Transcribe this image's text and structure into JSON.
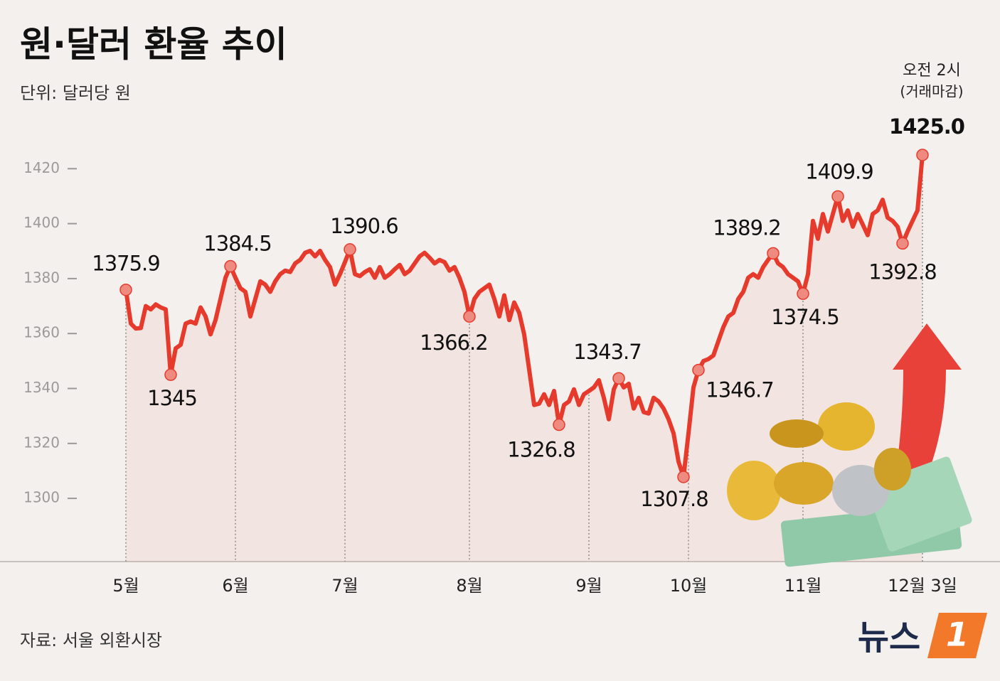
{
  "chart_data": {
    "type": "line",
    "title": "원·달러 환율 추이",
    "subtitle": "단위: 달러당 원",
    "source": "자료: 서울 외환시장",
    "annotation": [
      "오전 2시",
      "(거래마감)"
    ],
    "logo_text": "뉴스",
    "logo_number": "1",
    "color": "#e63b2c",
    "ylim": [
      1277,
      1440
    ],
    "yticks": [
      1300,
      1320,
      1340,
      1360,
      1380,
      1400,
      1420
    ],
    "categories": [
      "5월",
      null,
      null,
      null,
      null,
      null,
      null,
      null,
      null,
      null,
      null,
      null,
      null,
      null,
      null,
      null,
      null,
      null,
      null,
      null,
      null,
      null,
      "6월",
      null,
      null,
      null,
      null,
      null,
      null,
      null,
      null,
      null,
      null,
      null,
      null,
      null,
      null,
      null,
      null,
      null,
      null,
      null,
      null,
      null,
      "7월",
      null,
      null,
      null,
      null,
      null,
      null,
      null,
      null,
      null,
      null,
      null,
      null,
      null,
      null,
      null,
      null,
      null,
      null,
      null,
      null,
      null,
      null,
      null,
      null,
      "8월",
      null,
      null,
      null,
      null,
      null,
      null,
      null,
      null,
      null,
      null,
      null,
      null,
      null,
      null,
      null,
      null,
      null,
      null,
      null,
      null,
      null,
      null,
      null,
      "9월",
      null,
      null,
      null,
      null,
      null,
      null,
      null,
      null,
      null,
      null,
      null,
      null,
      null,
      null,
      null,
      null,
      null,
      null,
      null,
      "10월",
      null,
      null,
      null,
      null,
      null,
      null,
      null,
      null,
      null,
      null,
      null,
      null,
      null,
      null,
      null,
      null,
      null,
      null,
      null,
      null,
      null,
      null,
      "11월",
      null,
      null,
      null,
      null,
      null,
      null,
      null,
      null,
      null,
      null,
      null,
      null,
      null,
      null,
      null,
      null,
      null,
      null,
      null,
      null,
      null,
      null,
      null,
      "12월 3일"
    ],
    "values": [
      1375.9,
      1363.6,
      1361.8,
      1362,
      1370,
      1368.8,
      1370.6,
      1369.5,
      1368.8,
      1345,
      1354.6,
      1355.9,
      1363.6,
      1364.4,
      1363.6,
      1369.5,
      1366.2,
      1359.7,
      1364.9,
      1372.6,
      1380.3,
      1384.5,
      1380.3,
      1376.5,
      1375.2,
      1366.2,
      1372.6,
      1379,
      1377.8,
      1375.2,
      1379,
      1381.6,
      1382.9,
      1382.4,
      1385.5,
      1386.8,
      1389.4,
      1390.1,
      1388.1,
      1390.1,
      1386.8,
      1384.2,
      1377.8,
      1381.6,
      1386,
      1390.6,
      1381.6,
      1380.9,
      1382.4,
      1383.4,
      1380.3,
      1384.2,
      1380.3,
      1381.6,
      1383.4,
      1385,
      1381.6,
      1382.9,
      1385.5,
      1388.1,
      1389.4,
      1387.6,
      1385.5,
      1386.8,
      1386,
      1382.9,
      1384.2,
      1380.3,
      1375.2,
      1366.2,
      1372.6,
      1375.2,
      1376.5,
      1377.8,
      1372.6,
      1366.2,
      1373.9,
      1364.9,
      1371.3,
      1367.5,
      1359.7,
      1346.9,
      1334,
      1334.5,
      1337.9,
      1334,
      1339.1,
      1326.8,
      1334,
      1335.3,
      1339.7,
      1334,
      1337.9,
      1339.1,
      1340.4,
      1343,
      1336.6,
      1328.8,
      1339.7,
      1343.7,
      1340.4,
      1341.7,
      1332.7,
      1336.6,
      1331.4,
      1330.9,
      1336.6,
      1335.3,
      1332.7,
      1328.8,
      1323.7,
      1313.4,
      1307.8,
      1323.7,
      1340.4,
      1346.7,
      1350,
      1350.7,
      1352,
      1357.2,
      1362.3,
      1366.2,
      1367.5,
      1372.6,
      1375.2,
      1380.3,
      1381.6,
      1380.3,
      1384.2,
      1386.8,
      1389.2,
      1385.5,
      1384.2,
      1381.6,
      1380.3,
      1379,
      1374.5,
      1381.6,
      1401,
      1394.5,
      1403.5,
      1397.1,
      1403.5,
      1409.9,
      1401,
      1404.8,
      1398.9,
      1403.5,
      1399.7,
      1395.8,
      1403.5,
      1404.8,
      1408.7,
      1402.2,
      1401,
      1398.9,
      1392.8,
      1397.1,
      1401,
      1404.8,
      1425
    ],
    "value_labels": [
      "1375.9",
      null,
      null,
      null,
      null,
      null,
      null,
      null,
      null,
      "1345",
      null,
      null,
      null,
      null,
      null,
      null,
      null,
      null,
      null,
      null,
      null,
      "1384.5",
      null,
      null,
      null,
      null,
      null,
      null,
      null,
      null,
      null,
      null,
      null,
      null,
      null,
      null,
      null,
      null,
      null,
      null,
      null,
      null,
      null,
      null,
      null,
      "1390.6",
      null,
      null,
      null,
      null,
      null,
      null,
      null,
      null,
      null,
      null,
      null,
      null,
      null,
      null,
      null,
      null,
      null,
      null,
      null,
      null,
      null,
      null,
      null,
      "1366.2",
      null,
      null,
      null,
      null,
      null,
      null,
      null,
      null,
      null,
      null,
      null,
      null,
      null,
      null,
      null,
      null,
      null,
      "1326.8",
      null,
      null,
      null,
      null,
      null,
      null,
      null,
      null,
      null,
      null,
      null,
      "1343.7",
      null,
      null,
      null,
      null,
      null,
      null,
      null,
      null,
      null,
      null,
      null,
      null,
      "1307.8",
      null,
      null,
      "1346.7",
      null,
      null,
      null,
      null,
      null,
      null,
      null,
      null,
      null,
      null,
      null,
      null,
      null,
      null,
      "1389.2",
      null,
      null,
      null,
      null,
      null,
      "1374.5",
      null,
      null,
      null,
      null,
      null,
      null,
      "1409.9",
      null,
      null,
      null,
      null,
      null,
      null,
      null,
      null,
      null,
      null,
      null,
      null,
      "1392.8",
      null,
      null,
      null,
      "1425.0"
    ]
  }
}
